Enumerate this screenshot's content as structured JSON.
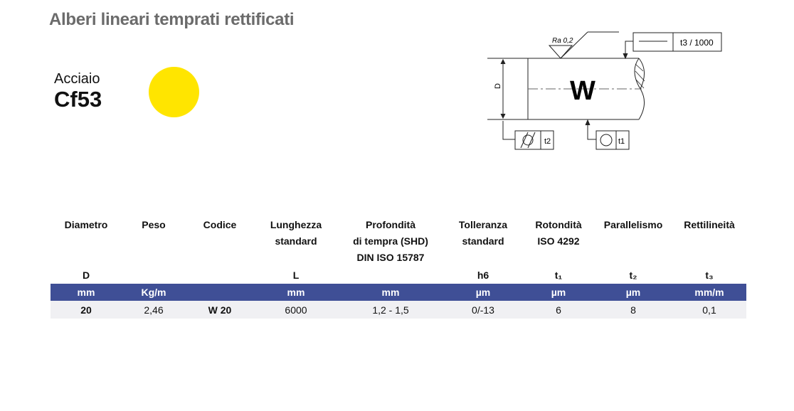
{
  "title": "Alberi lineari temprati rettificati",
  "material": {
    "label": "Acciaio",
    "name": "Cf53",
    "color": "#ffe500"
  },
  "diagram": {
    "roughness": "Ra 0,2",
    "shaft_letter": "W",
    "dim_label": "D",
    "t3_label": "t3 / 1000",
    "t2_label": "t2",
    "t1_label": "t1"
  },
  "table": {
    "header_color": "#3f4f96",
    "columns": [
      {
        "header": [
          "Diametro"
        ],
        "symbol": "D",
        "unit": "mm",
        "value": "20",
        "bold": true
      },
      {
        "header": [
          "Peso"
        ],
        "symbol": "",
        "unit": "Kg/m",
        "value": "2,46"
      },
      {
        "header": [
          "Codice"
        ],
        "symbol": "",
        "unit": "",
        "value": "W 20",
        "bold": true
      },
      {
        "header": [
          "Lunghezza",
          "standard"
        ],
        "symbol": "L",
        "unit": "mm",
        "value": "6000"
      },
      {
        "header": [
          "Profondità",
          "di tempra (SHD)",
          "DIN ISO 15787"
        ],
        "symbol": "",
        "unit": "mm",
        "value": "1,2 - 1,5"
      },
      {
        "header": [
          "Tolleranza",
          "standard"
        ],
        "symbol": "h6",
        "unit": "µm",
        "value": "0/-13"
      },
      {
        "header": [
          "Rotondità",
          "ISO 4292"
        ],
        "symbol": "t₁",
        "unit": "µm",
        "value": "6"
      },
      {
        "header": [
          "Parallelismo"
        ],
        "symbol": "t₂",
        "unit": "µm",
        "value": "8"
      },
      {
        "header": [
          "Rettilineità"
        ],
        "symbol": "t₃",
        "unit": "mm/m",
        "value": "0,1"
      }
    ]
  }
}
